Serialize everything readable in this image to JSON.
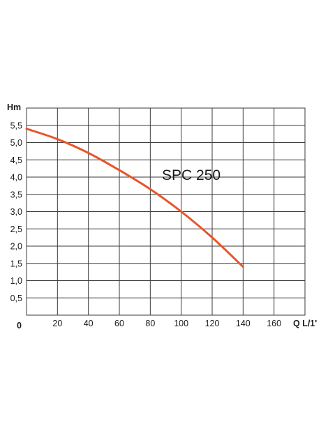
{
  "chart_data": {
    "type": "line",
    "title": "",
    "ylabel": "Hm",
    "xlabel": "Q L/1'",
    "origin_label": "0",
    "xlim": [
      0,
      180
    ],
    "ylim": [
      0,
      6
    ],
    "x_ticks": [
      20,
      40,
      60,
      80,
      100,
      120,
      140,
      160
    ],
    "x_tick_labels": [
      "20",
      "40",
      "60",
      "80",
      "100",
      "120",
      "140",
      "160"
    ],
    "y_ticks": [
      0.5,
      1.0,
      1.5,
      2.0,
      2.5,
      3.0,
      3.5,
      4.0,
      4.5,
      5.0,
      5.5
    ],
    "y_tick_labels": [
      "0,5",
      "1,0",
      "1,5",
      "2,0",
      "2,5",
      "3,0",
      "3,5",
      "4,0",
      "4,5",
      "5,0",
      "5,5"
    ],
    "grid": true,
    "annotation": "SPC 250",
    "series": [
      {
        "color": "#e8552a",
        "x": [
          0,
          20,
          40,
          60,
          80,
          100,
          120,
          140
        ],
        "y": [
          5.4,
          5.1,
          4.7,
          4.2,
          3.65,
          3.0,
          2.25,
          1.4
        ]
      }
    ]
  }
}
